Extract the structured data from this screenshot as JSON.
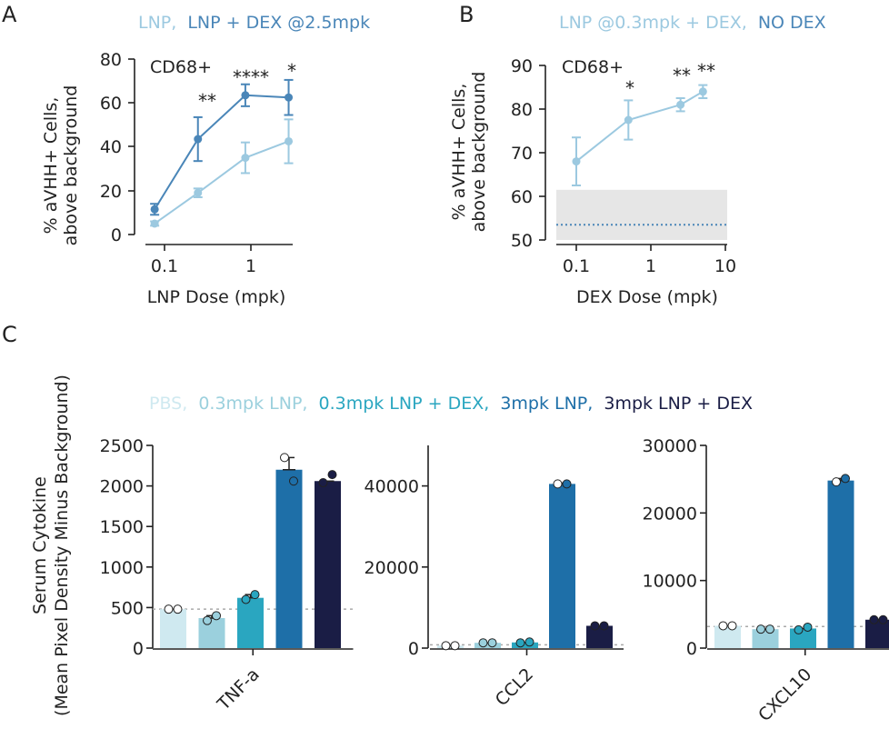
{
  "panels": {
    "A": {
      "letter": "A",
      "legend": [
        {
          "text": "LNP,",
          "color": "#9cc9e0"
        },
        {
          "text": "LNP + DEX @2.5mpk",
          "color": "#4a86b8"
        }
      ],
      "inset_label": "CD68+",
      "ylabel": "% aVHH+ Cells,",
      "ylabel2": "above background",
      "xlabel": "LNP Dose (mpk)",
      "y_ticks": [
        "0",
        "20",
        "40",
        "60",
        "80"
      ],
      "x_ticks": [
        "0.1",
        "1"
      ],
      "stars": [
        "**",
        "****",
        "*"
      ]
    },
    "B": {
      "letter": "B",
      "legend": [
        {
          "text": "LNP @0.3mpk + DEX,",
          "color": "#9cc9e0"
        },
        {
          "text": "NO DEX",
          "color": "#4a86b8"
        }
      ],
      "inset_label": "CD68+",
      "ylabel": "% aVHH+ Cells,",
      "ylabel2": "above background",
      "xlabel": "DEX Dose (mpk)",
      "y_ticks": [
        "50",
        "60",
        "70",
        "80",
        "90"
      ],
      "x_ticks": [
        "0.1",
        "1",
        "10"
      ],
      "stars": [
        "*",
        "**",
        "**"
      ]
    },
    "C": {
      "letter": "C",
      "legend": [
        {
          "text": "PBS,",
          "color": "#cfe9f0"
        },
        {
          "text": "0.3mpk LNP,",
          "color": "#9bd0dd"
        },
        {
          "text": "0.3mpk LNP + DEX,",
          "color": "#2aa6c0"
        },
        {
          "text": "3mpk LNP,",
          "color": "#1e6fa8"
        },
        {
          "text": "3mpk LNP + DEX",
          "color": "#1a1d45"
        }
      ],
      "ylabel": "Serum Cytokine",
      "ylabel2": "(Mean Pixel Density Minus Background)"
    }
  },
  "chart_data": [
    {
      "type": "line",
      "panel": "A",
      "x_scale": "log",
      "xlim": [
        0.06,
        4
      ],
      "ylim": [
        0,
        80
      ],
      "xlabel": "LNP Dose (mpk)",
      "ylabel": "% aVHH+ Cells, above background",
      "series": [
        {
          "name": "LNP",
          "color": "#9cc9e0",
          "x": [
            0.1,
            0.3,
            1,
            3
          ],
          "y": [
            5,
            19,
            35,
            42.5
          ],
          "err": [
            1,
            2,
            7,
            10
          ]
        },
        {
          "name": "LNP + DEX @2.5mpk",
          "color": "#4a86b8",
          "x": [
            0.1,
            0.3,
            1,
            3
          ],
          "y": [
            11.5,
            43.5,
            63.5,
            62.5
          ],
          "err": [
            2.5,
            10,
            5,
            8
          ]
        }
      ],
      "annotations": [
        {
          "x": 0.3,
          "text": "**"
        },
        {
          "x": 1,
          "text": "****"
        },
        {
          "x": 3,
          "text": "*"
        }
      ]
    },
    {
      "type": "line",
      "panel": "B",
      "x_scale": "log",
      "xlim": [
        0.05,
        10
      ],
      "ylim": [
        50,
        90
      ],
      "xlabel": "DEX Dose (mpk)",
      "ylabel": "% aVHH+ Cells, above background",
      "series": [
        {
          "name": "LNP @0.3mpk + DEX",
          "color": "#9cc9e0",
          "x": [
            0.1,
            0.5,
            2.5,
            5
          ],
          "y": [
            68,
            77.5,
            81,
            84
          ],
          "err": [
            5.5,
            4.5,
            1.5,
            1.5
          ]
        }
      ],
      "reference": {
        "name": "NO DEX",
        "color": "#4a86b8",
        "y": 53.5,
        "band": [
          50,
          61.5
        ]
      },
      "annotations": [
        {
          "x": 0.5,
          "text": "*"
        },
        {
          "x": 2.5,
          "text": "**"
        },
        {
          "x": 5,
          "text": "**"
        }
      ]
    },
    {
      "type": "bar",
      "panel": "C1",
      "xlabel": "TNF-a",
      "ylim": [
        0,
        2500
      ],
      "y_ticks": [
        "0",
        "500",
        "1000",
        "1500",
        "2000",
        "2500"
      ],
      "reference_line": 480,
      "categories": [
        "PBS",
        "0.3mpk LNP",
        "0.3mpk LNP + DEX",
        "3mpk LNP",
        "3mpk LNP + DEX"
      ],
      "values": [
        480,
        370,
        620,
        2200,
        2060
      ],
      "points": [
        [
          480,
          480
        ],
        [
          340,
          400
        ],
        [
          600,
          660
        ],
        [
          2350,
          2060
        ],
        [
          2040,
          2140
        ]
      ],
      "err": [
        0,
        30,
        40,
        150,
        0
      ],
      "colors": [
        "#cfe9f0",
        "#9bd0dd",
        "#2aa6c0",
        "#1e6fa8",
        "#1a1d45"
      ]
    },
    {
      "type": "bar",
      "panel": "C2",
      "xlabel": "CCL2",
      "ylim": [
        0,
        50000
      ],
      "y_ticks": [
        "0",
        "20000",
        "40000"
      ],
      "reference_line": 800,
      "categories": [
        "PBS",
        "0.3mpk LNP",
        "0.3mpk LNP + DEX",
        "3mpk LNP",
        "3mpk LNP + DEX"
      ],
      "values": [
        600,
        1300,
        1400,
        40500,
        5500
      ],
      "points": [
        [
          600,
          600
        ],
        [
          1300,
          1300
        ],
        [
          1300,
          1500
        ],
        [
          40500,
          40500
        ],
        [
          5500,
          5500
        ]
      ],
      "err": [
        0,
        0,
        0,
        200,
        0
      ],
      "colors": [
        "#cfe9f0",
        "#9bd0dd",
        "#2aa6c0",
        "#1e6fa8",
        "#1a1d45"
      ]
    },
    {
      "type": "bar",
      "panel": "C3",
      "xlabel": "CXCL10",
      "ylim": [
        0,
        30000
      ],
      "y_ticks": [
        "0",
        "10000",
        "20000",
        "30000"
      ],
      "reference_line": 3200,
      "categories": [
        "PBS",
        "0.3mpk LNP",
        "0.3mpk LNP + DEX",
        "3mpk LNP",
        "3mpk LNP + DEX"
      ],
      "values": [
        3300,
        2800,
        2900,
        24800,
        4200
      ],
      "points": [
        [
          3300,
          3300
        ],
        [
          2800,
          2800
        ],
        [
          2700,
          3100
        ],
        [
          24600,
          25100
        ],
        [
          4200,
          4200
        ]
      ],
      "err": [
        0,
        0,
        0,
        300,
        0
      ],
      "colors": [
        "#cfe9f0",
        "#9bd0dd",
        "#2aa6c0",
        "#1e6fa8",
        "#1a1d45"
      ]
    }
  ]
}
